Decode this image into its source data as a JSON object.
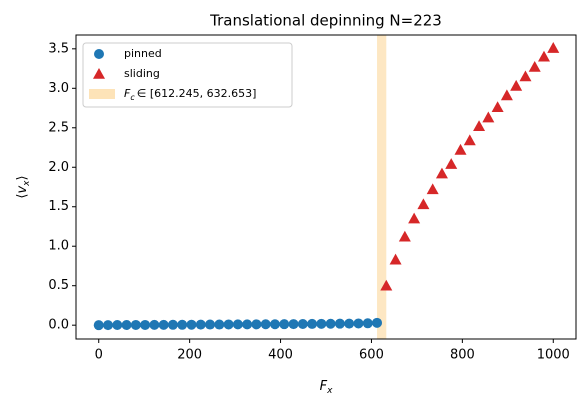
{
  "chart_data": {
    "type": "scatter",
    "title": "Translational depinning  N=223",
    "x_label": {
      "symbol": "F",
      "subscript": "x"
    },
    "y_label": {
      "prefix": "⟨",
      "symbol": "v",
      "subscript": "x",
      "suffix": "⟩"
    },
    "xlim": [
      -50,
      1050
    ],
    "ylim": [
      -0.175,
      3.675
    ],
    "xticks": [
      0,
      200,
      400,
      600,
      800,
      1000
    ],
    "yticks": [
      {
        "value": 0,
        "label": "0.0"
      },
      {
        "value": 0.5,
        "label": "0.5"
      },
      {
        "value": 1,
        "label": "1.0"
      },
      {
        "value": 1.5,
        "label": "1.5"
      },
      {
        "value": 2,
        "label": "2.0"
      },
      {
        "value": 2.5,
        "label": "2.5"
      },
      {
        "value": 3,
        "label": "3.0"
      },
      {
        "value": 3.5,
        "label": "3.5"
      }
    ],
    "grid": false,
    "legend": "upper left",
    "band": {
      "range": [
        612.245,
        632.653
      ],
      "color": "#fde3b8",
      "label": {
        "symbol": "F",
        "subscript": "c",
        "text": "∈ [612.245, 632.653]"
      }
    },
    "series": [
      {
        "name": "pinned",
        "color": "#1f77b4",
        "marker": "circle",
        "x": [
          0,
          20.41,
          40.82,
          61.22,
          81.63,
          102.04,
          122.45,
          142.86,
          163.27,
          183.67,
          204.08,
          224.49,
          244.9,
          265.31,
          285.71,
          306.12,
          326.53,
          346.94,
          367.35,
          387.76,
          408.16,
          428.57,
          448.98,
          469.39,
          489.8,
          510.2,
          530.61,
          551.02,
          571.43,
          591.84,
          612.245
        ],
        "values": [
          0.0,
          0.001,
          0.002,
          0.002,
          0.003,
          0.003,
          0.004,
          0.004,
          0.005,
          0.005,
          0.006,
          0.007,
          0.008,
          0.008,
          0.009,
          0.01,
          0.01,
          0.011,
          0.012,
          0.012,
          0.013,
          0.014,
          0.015,
          0.016,
          0.017,
          0.018,
          0.019,
          0.02,
          0.022,
          0.024,
          0.03
        ]
      },
      {
        "name": "sliding",
        "color": "#d62728",
        "marker": "triangle",
        "x": [
          632.653,
          653.06,
          673.47,
          693.88,
          714.29,
          734.69,
          755.1,
          775.51,
          795.92,
          816.33,
          836.73,
          857.14,
          877.55,
          897.96,
          918.37,
          938.78,
          959.18,
          979.59,
          1000
        ],
        "values": [
          0.5,
          0.83,
          1.12,
          1.35,
          1.53,
          1.72,
          1.92,
          2.04,
          2.22,
          2.34,
          2.52,
          2.63,
          2.76,
          2.91,
          3.03,
          3.15,
          3.27,
          3.4,
          3.51
        ]
      }
    ]
  }
}
